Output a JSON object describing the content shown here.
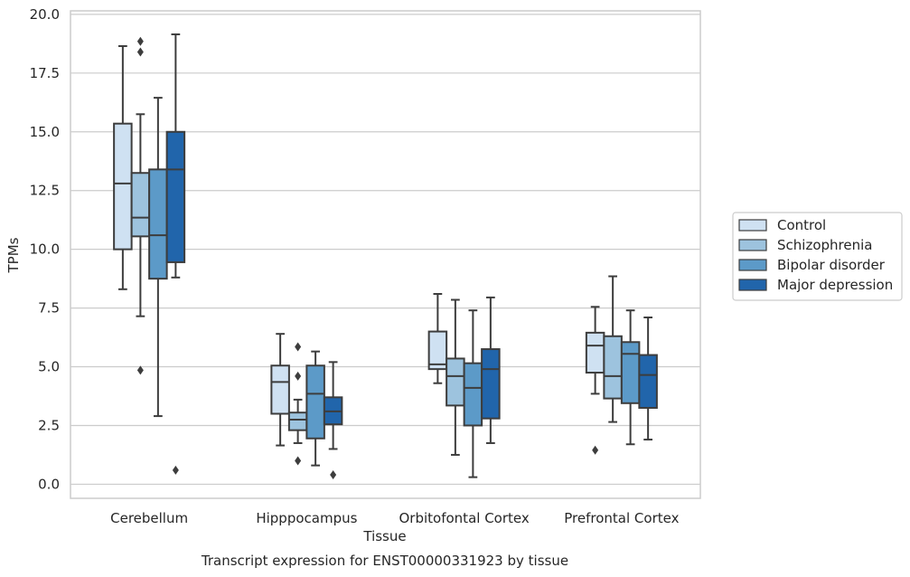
{
  "chart_data": {
    "type": "box",
    "caption": "Transcript expression for ENST00000331923 by tissue",
    "xlabel": "Tissue",
    "ylabel": "TPMs",
    "ylim": [
      -0.6,
      20.15
    ],
    "yticks": [
      0.0,
      2.5,
      5.0,
      7.5,
      10.0,
      12.5,
      15.0,
      17.5,
      20.0
    ],
    "ytick_labels": [
      "0.0",
      "2.5",
      "5.0",
      "7.5",
      "10.0",
      "12.5",
      "15.0",
      "17.5",
      "20.0"
    ],
    "categories": [
      "Cerebellum",
      "Hipppocampus",
      "Orbitofontal Cortex",
      "Prefrontal Cortex"
    ],
    "grid": "horizontal",
    "legend_position": "right",
    "series": [
      {
        "name": "Control",
        "color": "#cfe1f2",
        "boxes": [
          {
            "whislo": 8.3,
            "q1": 10.0,
            "med": 12.8,
            "q3": 15.35,
            "whishi": 18.65,
            "fliers": []
          },
          {
            "whislo": 1.65,
            "q1": 3.0,
            "med": 4.35,
            "q3": 5.05,
            "whishi": 6.4,
            "fliers": []
          },
          {
            "whislo": 4.3,
            "q1": 4.9,
            "med": 5.1,
            "q3": 6.5,
            "whishi": 8.1,
            "fliers": []
          },
          {
            "whislo": 3.85,
            "q1": 4.75,
            "med": 5.9,
            "q3": 6.45,
            "whishi": 7.55,
            "fliers": [
              1.45
            ]
          }
        ]
      },
      {
        "name": "Schizophrenia",
        "color": "#9dc3de",
        "boxes": [
          {
            "whislo": 7.15,
            "q1": 10.55,
            "med": 11.35,
            "q3": 13.25,
            "whishi": 15.75,
            "fliers": [
              4.85,
              18.4,
              18.85
            ]
          },
          {
            "whislo": 1.75,
            "q1": 2.3,
            "med": 2.75,
            "q3": 3.05,
            "whishi": 3.6,
            "fliers": [
              1.0,
              4.6,
              5.85
            ]
          },
          {
            "whislo": 1.25,
            "q1": 3.35,
            "med": 4.6,
            "q3": 5.35,
            "whishi": 7.85,
            "fliers": []
          },
          {
            "whislo": 2.65,
            "q1": 3.65,
            "med": 4.6,
            "q3": 6.3,
            "whishi": 8.85,
            "fliers": []
          }
        ]
      },
      {
        "name": "Bipolar disorder",
        "color": "#5c9ac8",
        "boxes": [
          {
            "whislo": 2.9,
            "q1": 8.75,
            "med": 10.6,
            "q3": 13.4,
            "whishi": 16.45,
            "fliers": []
          },
          {
            "whislo": 0.8,
            "q1": 1.95,
            "med": 3.85,
            "q3": 5.05,
            "whishi": 5.65,
            "fliers": []
          },
          {
            "whislo": 0.3,
            "q1": 2.5,
            "med": 4.1,
            "q3": 5.15,
            "whishi": 7.4,
            "fliers": []
          },
          {
            "whislo": 1.7,
            "q1": 3.45,
            "med": 5.55,
            "q3": 6.05,
            "whishi": 7.4,
            "fliers": []
          }
        ]
      },
      {
        "name": "Major depression",
        "color": "#2165ab",
        "boxes": [
          {
            "whislo": 8.8,
            "q1": 9.45,
            "med": 13.4,
            "q3": 15.0,
            "whishi": 19.15,
            "fliers": [
              0.6
            ]
          },
          {
            "whislo": 1.5,
            "q1": 2.55,
            "med": 3.1,
            "q3": 3.7,
            "whishi": 5.2,
            "fliers": [
              0.4
            ]
          },
          {
            "whislo": 1.75,
            "q1": 2.8,
            "med": 4.9,
            "q3": 5.75,
            "whishi": 7.95,
            "fliers": []
          },
          {
            "whislo": 1.9,
            "q1": 3.25,
            "med": 4.65,
            "q3": 5.5,
            "whishi": 7.1,
            "fliers": []
          }
        ]
      }
    ]
  }
}
